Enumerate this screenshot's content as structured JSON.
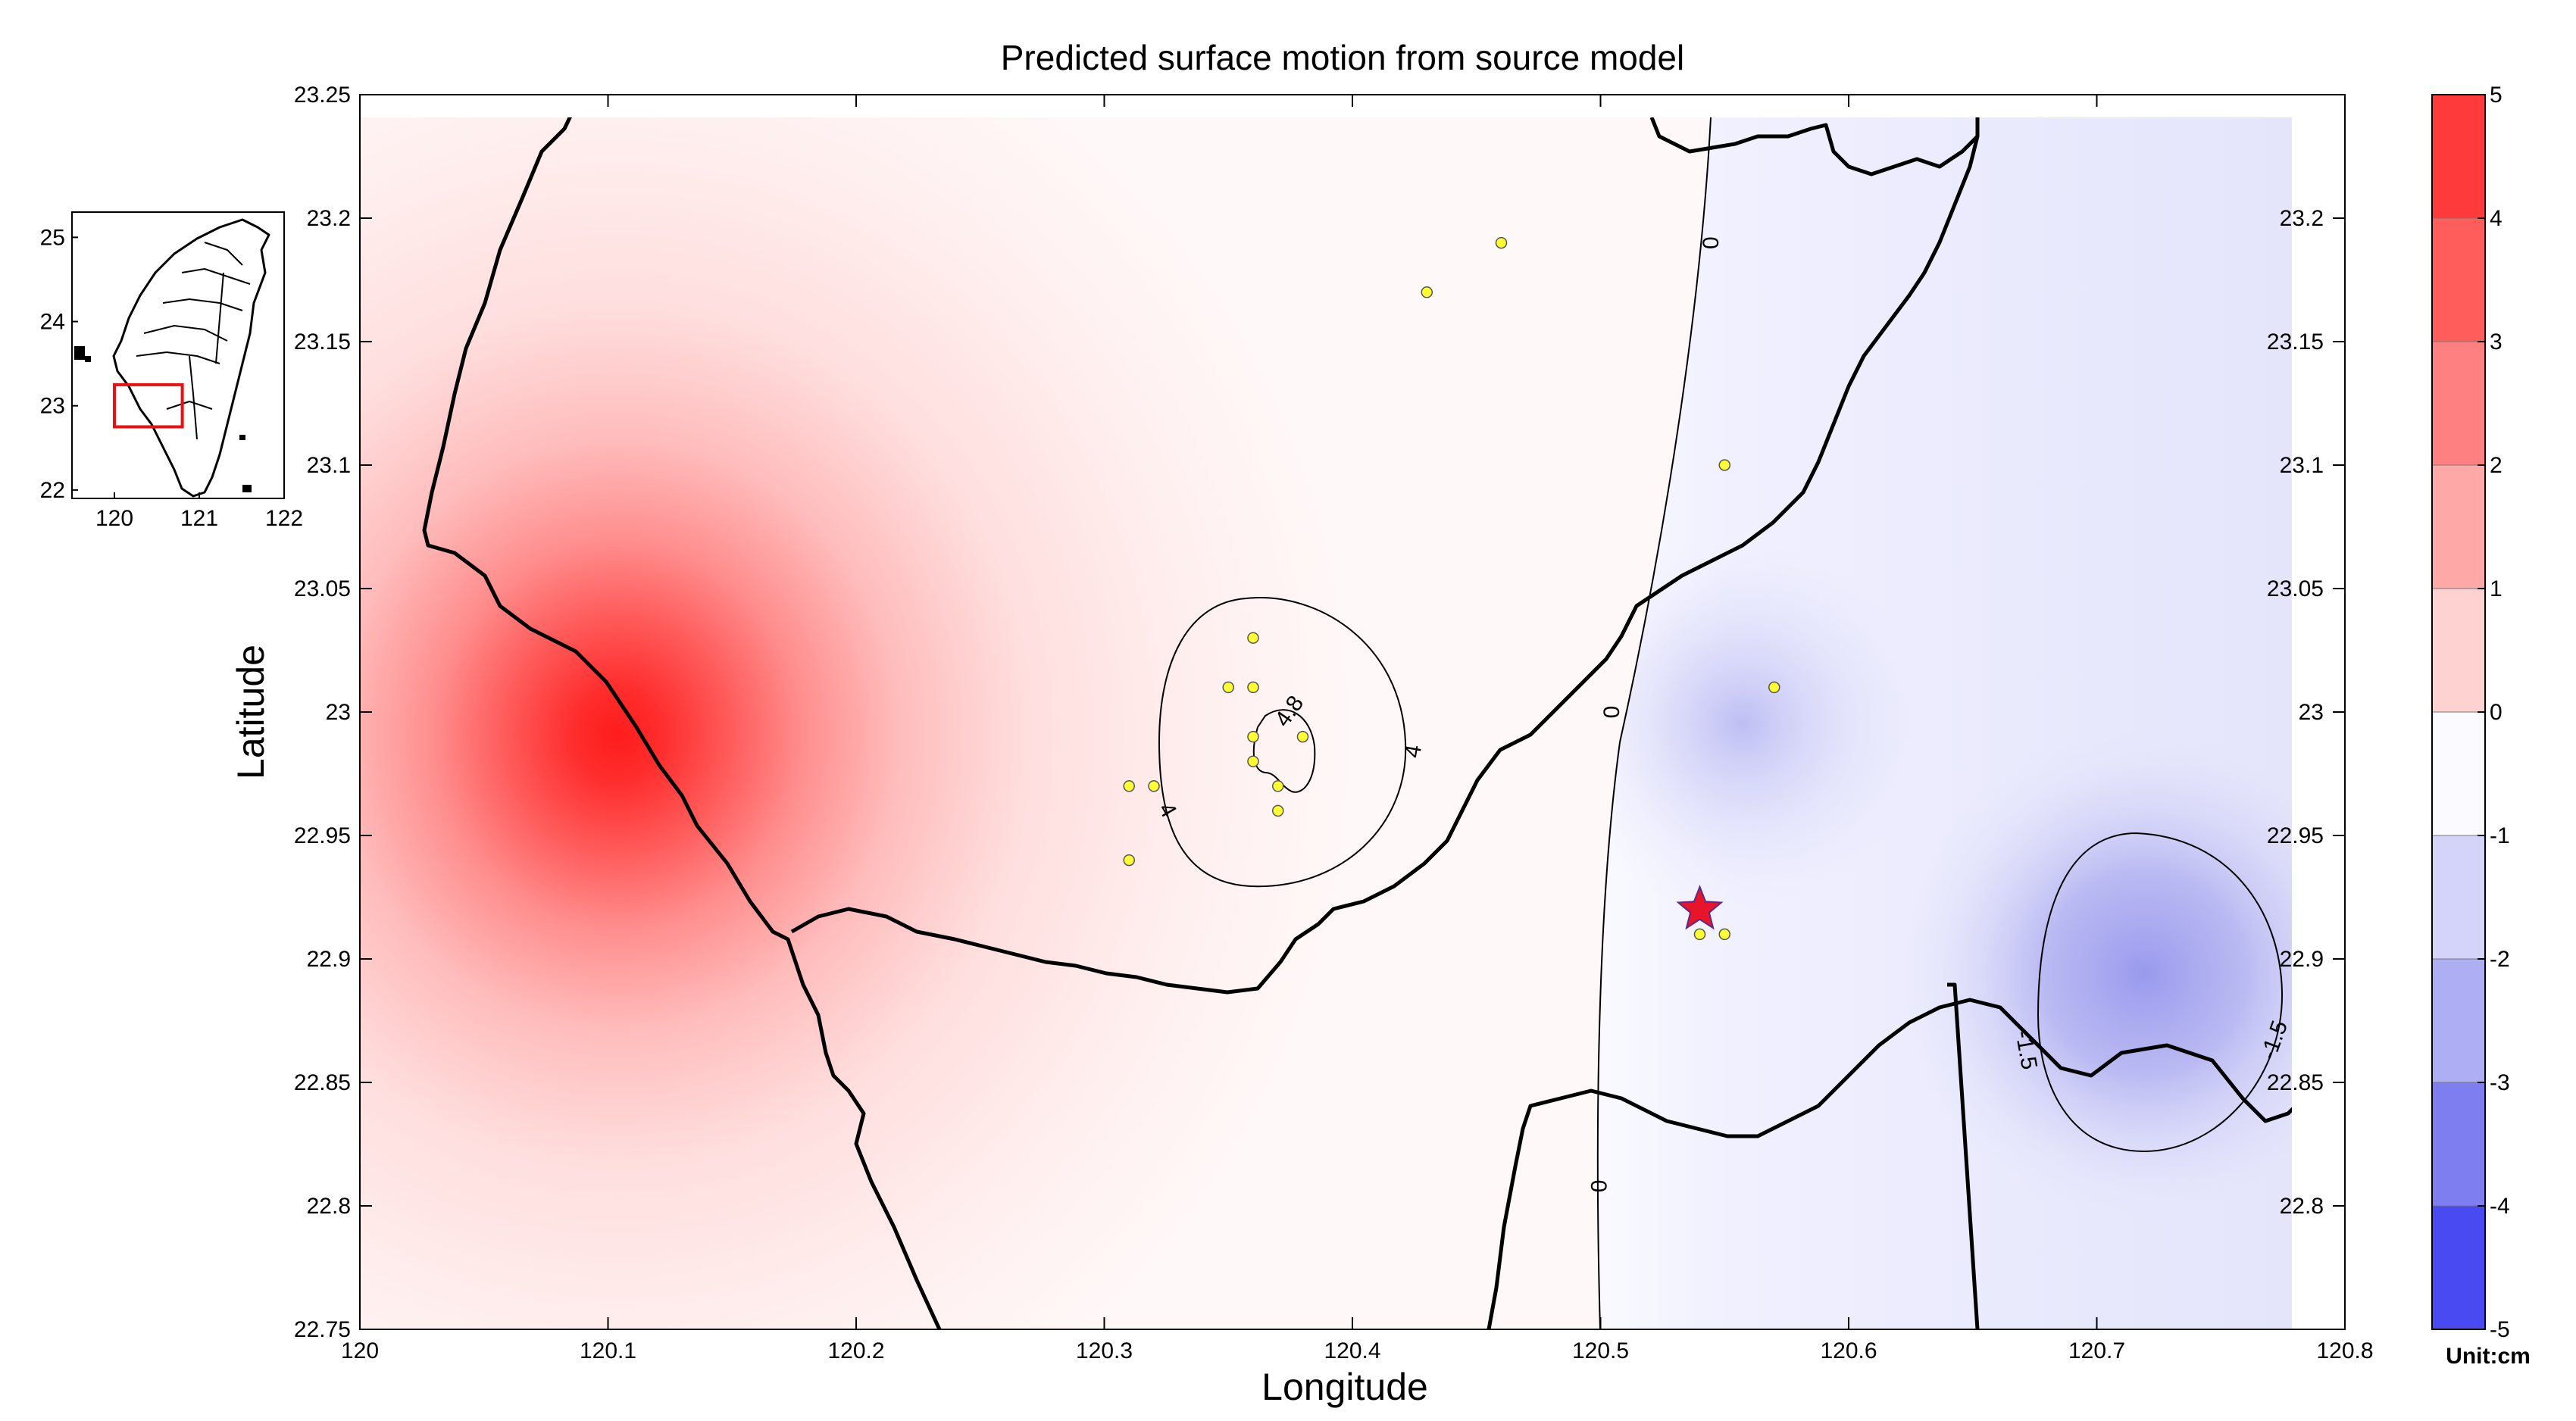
{
  "title": "Predicted surface motion from source model",
  "x_label": "Longitude",
  "y_label": "Latitude",
  "x_ticks": [
    "120",
    "120.1",
    "120.2",
    "120.3",
    "120.4",
    "120.5",
    "120.6",
    "120.7",
    "120.8"
  ],
  "y_ticks": [
    "23.25",
    "23.2",
    "23.15",
    "23.1",
    "23.05",
    "23",
    "22.95",
    "22.9",
    "22.85",
    "22.8",
    "22.75"
  ],
  "map_extent": {
    "lon_min": 120.0,
    "lon_max": 120.8,
    "lat_min": 22.75,
    "lat_max": 23.25
  },
  "contour_labels": [
    {
      "text": "4.8",
      "lon": 120.375,
      "lat": 23.0,
      "rot": -55
    },
    {
      "text": "4",
      "lon": 120.425,
      "lat": 22.984,
      "rot": -80
    },
    {
      "text": "4",
      "lon": 120.325,
      "lat": 22.96,
      "rot": 60
    },
    {
      "text": "0",
      "lon": 120.545,
      "lat": 23.19,
      "rot": -90
    },
    {
      "text": "0",
      "lon": 120.505,
      "lat": 23.0,
      "rot": -90
    },
    {
      "text": "0",
      "lon": 120.5,
      "lat": 22.808,
      "rot": -90
    },
    {
      "text": "-1.5",
      "lon": 120.671,
      "lat": 22.863,
      "rot": 80
    },
    {
      "text": "-1.5",
      "lon": 120.772,
      "lat": 22.867,
      "rot": -70
    }
  ],
  "stations": [
    {
      "lon": 120.46,
      "lat": 23.19
    },
    {
      "lon": 120.43,
      "lat": 23.17
    },
    {
      "lon": 120.55,
      "lat": 23.1
    },
    {
      "lon": 120.57,
      "lat": 23.01
    },
    {
      "lon": 120.36,
      "lat": 23.03
    },
    {
      "lon": 120.35,
      "lat": 23.01
    },
    {
      "lon": 120.36,
      "lat": 23.01
    },
    {
      "lon": 120.36,
      "lat": 22.99
    },
    {
      "lon": 120.38,
      "lat": 22.99
    },
    {
      "lon": 120.36,
      "lat": 22.98
    },
    {
      "lon": 120.37,
      "lat": 22.97
    },
    {
      "lon": 120.31,
      "lat": 22.97
    },
    {
      "lon": 120.32,
      "lat": 22.97
    },
    {
      "lon": 120.37,
      "lat": 22.96
    },
    {
      "lon": 120.31,
      "lat": 22.94
    },
    {
      "lon": 120.54,
      "lat": 22.92
    },
    {
      "lon": 120.54,
      "lat": 22.91
    },
    {
      "lon": 120.55,
      "lat": 22.91
    }
  ],
  "epicenter": {
    "lon": 120.54,
    "lat": 22.92
  },
  "colorbar": {
    "ticks": [
      "5",
      "4",
      "3",
      "2",
      "1",
      "0",
      "-1",
      "-2",
      "-3",
      "-4",
      "-5"
    ],
    "unit": "Unit:cm"
  },
  "inset": {
    "x_ticks": [
      "120",
      "121",
      "122"
    ],
    "y_ticks": [
      "25",
      "24",
      "23",
      "22"
    ],
    "study_area": {
      "lon_min": 120.0,
      "lon_max": 120.8,
      "lat_min": 22.75,
      "lat_max": 23.25
    }
  },
  "colors": {
    "positive": "#ff0000",
    "negative": "#0000ff",
    "station": "#ffff33",
    "epicenter": "#e8152a",
    "border": "#000000"
  }
}
